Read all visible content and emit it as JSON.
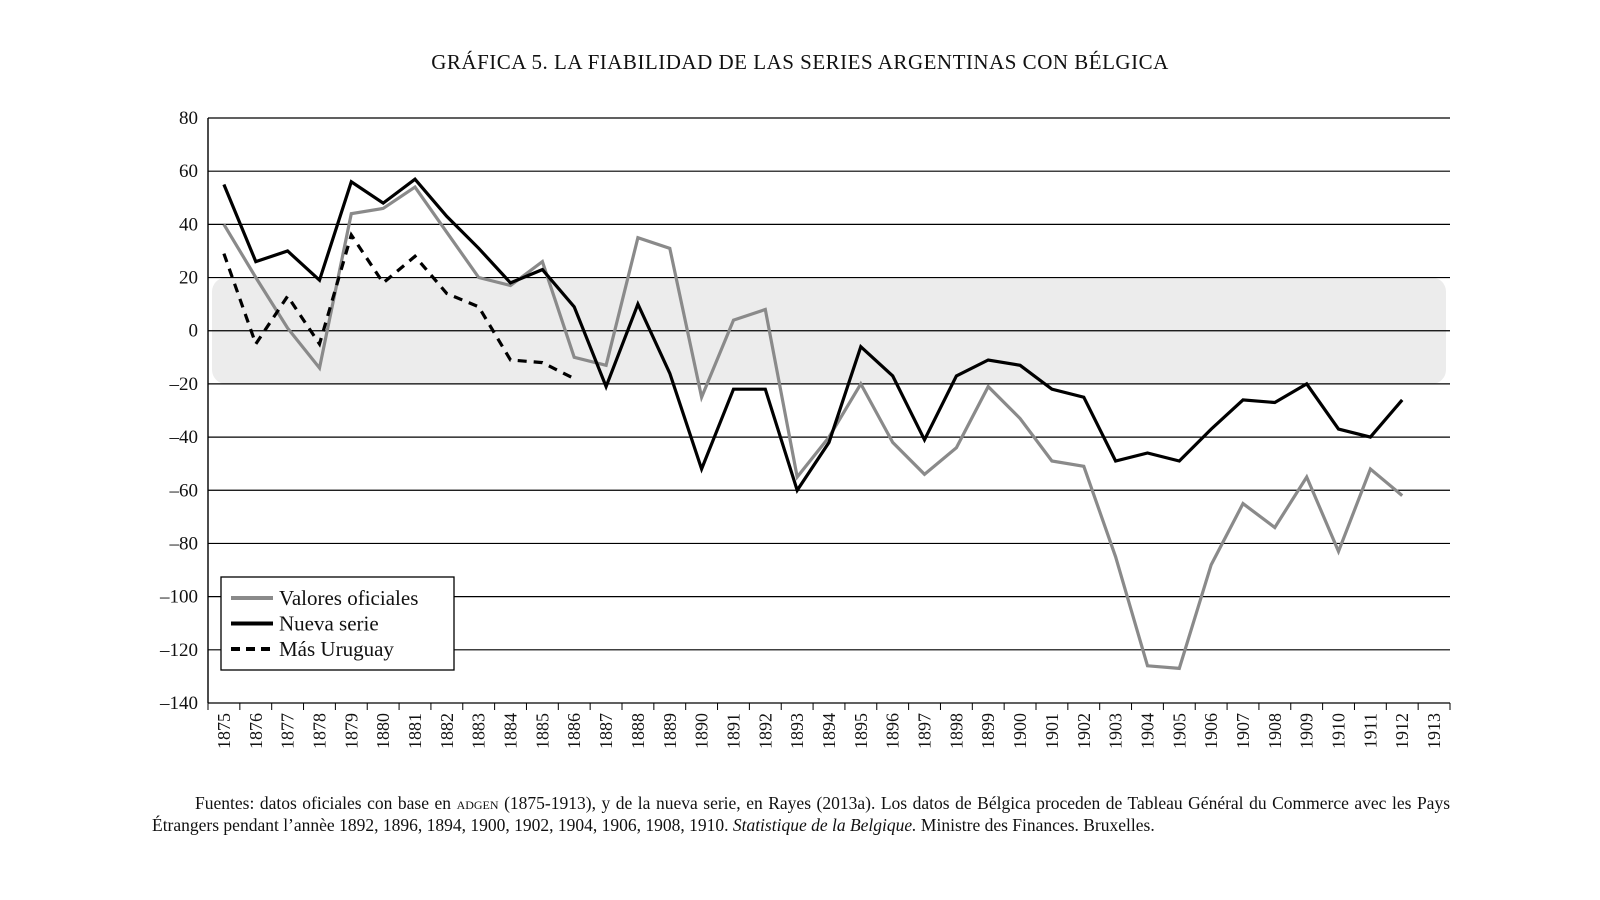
{
  "chart_data": {
    "type": "line",
    "title": "GRÁFICA 5. LA FIABILIDAD DE LAS SERIES ARGENTINAS CON BÉLGICA",
    "xlabel": "",
    "ylabel": "",
    "ylim": [
      -140,
      80
    ],
    "yticks": [
      80,
      60,
      40,
      20,
      0,
      -20,
      -40,
      -60,
      -80,
      -100,
      -120,
      -140
    ],
    "ytick_labels": [
      "80",
      "60",
      "40",
      "20",
      "0",
      "–20",
      "–40",
      "–60",
      "–80",
      "–100",
      "–120",
      "–140"
    ],
    "categories": [
      "1875",
      "1876",
      "1877",
      "1878",
      "1879",
      "1880",
      "1881",
      "1882",
      "1883",
      "1884",
      "1885",
      "1886",
      "1887",
      "1888",
      "1889",
      "1890",
      "1891",
      "1892",
      "1893",
      "1894",
      "1895",
      "1896",
      "1897",
      "1898",
      "1899",
      "1900",
      "1901",
      "1902",
      "1903",
      "1904",
      "1905",
      "1906",
      "1907",
      "1908",
      "1909",
      "1910",
      "1911",
      "1912",
      "1913"
    ],
    "shaded_band": [
      -20,
      20
    ],
    "grid": true,
    "legend_position": "bottom-left",
    "series": [
      {
        "name": "Valores oficiales",
        "style": "solid-gray",
        "color": "#888888",
        "values": [
          40,
          20,
          1,
          -14,
          44,
          46,
          54,
          37,
          20,
          17,
          26,
          -10,
          -13,
          35,
          31,
          -25,
          4,
          8,
          -55,
          -40,
          -20,
          -42,
          -54,
          -44,
          -21,
          -33,
          -49,
          -51,
          -85,
          -126,
          -127,
          -88,
          -65,
          -74,
          -55,
          -83,
          -52,
          -62,
          null
        ]
      },
      {
        "name": "Nueva serie",
        "style": "solid-black",
        "color": "#000000",
        "values": [
          55,
          26,
          30,
          19,
          56,
          48,
          57,
          43,
          31,
          18,
          23,
          9,
          -21,
          10,
          -16,
          -52,
          -22,
          -22,
          -60,
          -42,
          -6,
          -17,
          -41,
          -17,
          -11,
          -13,
          -22,
          -25,
          -49,
          -46,
          -49,
          -37,
          -26,
          -27,
          -20,
          -37,
          -40,
          -26,
          null
        ]
      },
      {
        "name": "Más Uruguay",
        "style": "dashed-black",
        "color": "#000000",
        "values": [
          29,
          -5,
          13,
          -5,
          36,
          18,
          28,
          14,
          9,
          -11,
          -12,
          -18,
          null,
          null,
          null,
          null,
          null,
          null,
          null,
          null,
          null,
          null,
          null,
          null,
          null,
          null,
          null,
          null,
          null,
          null,
          null,
          null,
          null,
          null,
          null,
          null,
          null,
          null,
          null
        ]
      }
    ]
  },
  "source": {
    "prefix": "Fuentes: datos oficiales con base en",
    "org": "adgen",
    "middle": "(1875-1913), y de la nueva serie, en Rayes (2013a). Los datos de Bélgica proceden de Tableau Général du Commerce avec les Pays Étrangers pendant l’annèe 1892, 1896, 1894, 1900, 1902, 1904, 1906, 1908, 1910.",
    "italic": "Statistique de la Belgique.",
    "suffix": "Ministre des Finances. Bruxelles."
  }
}
